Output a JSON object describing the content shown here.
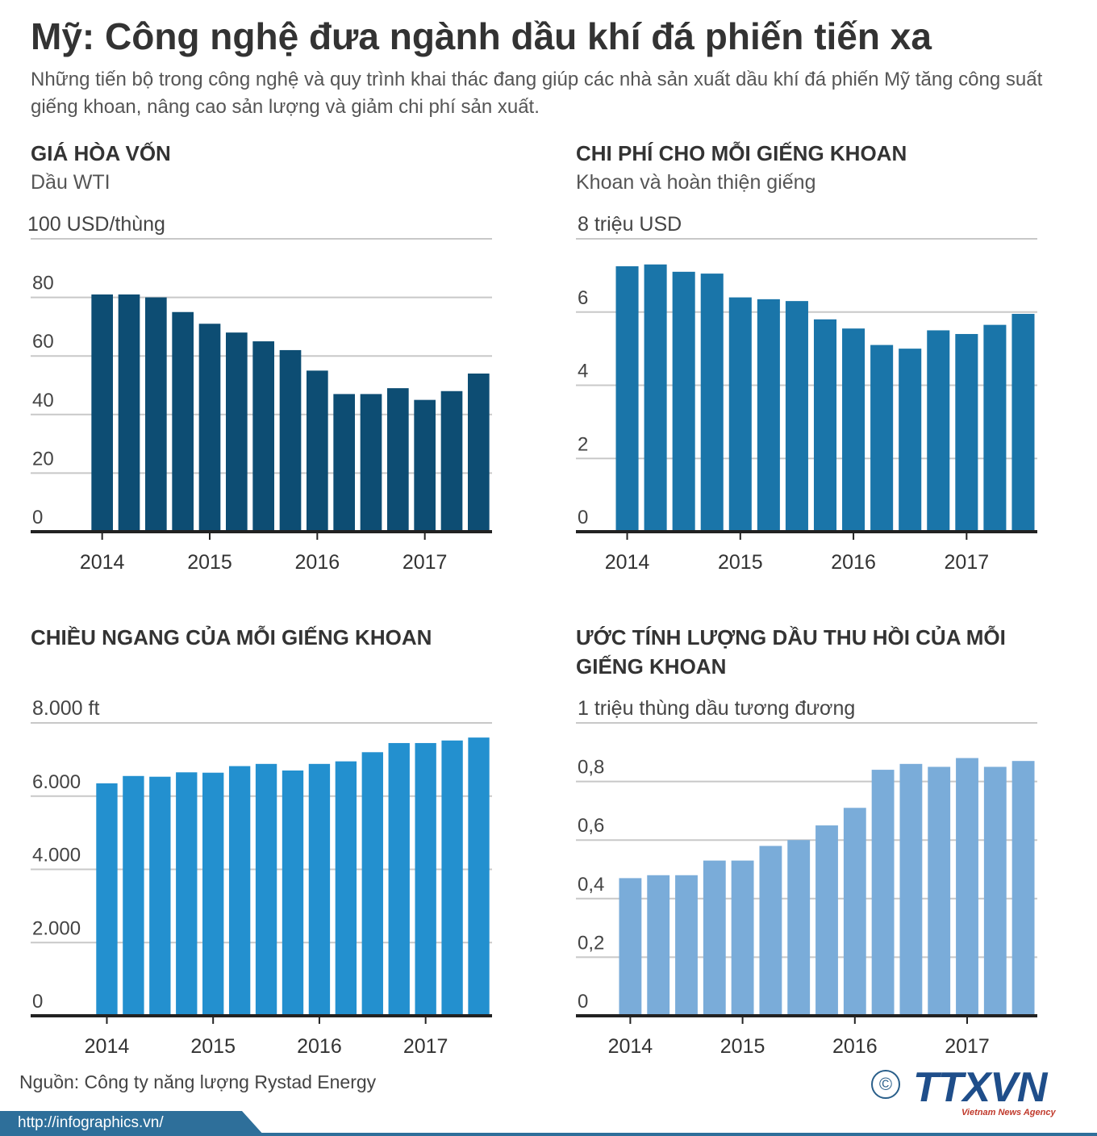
{
  "header": {
    "title": "Mỹ: Công nghệ đưa ngành dầu khí đá phiến tiến xa",
    "subtitle": "Những tiến bộ trong công nghệ và quy trình khai thác đang giúp các nhà sản xuất dầu khí đá phiến Mỹ tăng công suất giếng khoan, nâng cao sản lượng và giảm chi phí sản xuất."
  },
  "colors": {
    "breakeven": "#0d4d73",
    "cost": "#1a75a9",
    "length": "#2390cf",
    "recovery": "#7aacd9",
    "grid": "#c8c8c8",
    "axis": "#222222"
  },
  "chart_data": [
    {
      "type": "bar",
      "title": "GIÁ HÒA VỐN",
      "subtitle": "Dầu WTI",
      "ylabel": "100 USD/thùng",
      "ylim": [
        0,
        100
      ],
      "yticks": [
        0,
        20,
        40,
        60,
        80
      ],
      "ytick_labels": [
        "0",
        "20",
        "40",
        "60",
        "80"
      ],
      "x": [
        2014.0,
        2014.25,
        2014.5,
        2014.75,
        2015.0,
        2015.25,
        2015.5,
        2015.75,
        2016.0,
        2016.25,
        2016.5,
        2016.75,
        2017.0,
        2017.25,
        2017.5
      ],
      "xticks": [
        "2014",
        "2015",
        "2016",
        "2017"
      ],
      "values": [
        81,
        81,
        80,
        75,
        71,
        68,
        65,
        62,
        55,
        47,
        47,
        49,
        45,
        48,
        54
      ],
      "grid": true
    },
    {
      "type": "bar",
      "title": "CHI PHÍ CHO MỖI GIẾNG KHOAN",
      "subtitle": "Khoan và hoàn thiện giếng",
      "ylabel": "8 triệu USD",
      "ylim": [
        0,
        8
      ],
      "yticks": [
        0,
        2,
        4,
        6
      ],
      "ytick_labels": [
        "0",
        "2",
        "4",
        "6"
      ],
      "x": [
        2014.0,
        2014.25,
        2014.5,
        2014.75,
        2015.0,
        2015.25,
        2015.5,
        2015.75,
        2016.0,
        2016.25,
        2016.5,
        2016.75,
        2017.0,
        2017.25,
        2017.5
      ],
      "xticks": [
        "2014",
        "2015",
        "2016",
        "2017"
      ],
      "values": [
        7.25,
        7.3,
        7.1,
        7.05,
        6.4,
        6.35,
        6.3,
        5.8,
        5.55,
        5.1,
        5.0,
        5.5,
        5.4,
        5.65,
        5.95
      ],
      "grid": true
    },
    {
      "type": "bar",
      "title": "CHIỀU NGANG CỦA MỖI GIẾNG KHOAN",
      "subtitle": "",
      "ylabel": "8.000 ft",
      "ylim": [
        0,
        8000
      ],
      "yticks": [
        0,
        2000,
        4000,
        6000
      ],
      "ytick_labels": [
        "0",
        "2.000",
        "4.000",
        "6.000"
      ],
      "x": [
        2014.0,
        2014.25,
        2014.5,
        2014.75,
        2015.0,
        2015.25,
        2015.5,
        2015.75,
        2016.0,
        2016.25,
        2016.5,
        2016.75,
        2017.0,
        2017.25,
        2017.5
      ],
      "xticks": [
        "2014",
        "2015",
        "2016",
        "2017"
      ],
      "values": [
        6350,
        6550,
        6530,
        6650,
        6640,
        6820,
        6880,
        6700,
        6880,
        6950,
        7200,
        7450,
        7450,
        7520,
        7600
      ],
      "grid": true
    },
    {
      "type": "bar",
      "title": "ƯỚC TÍNH LƯỢNG DẦU THU HỒI CỦA MỖI GIẾNG KHOAN",
      "subtitle": "",
      "ylabel": "1 triệu thùng dầu tương đương",
      "ylim": [
        0,
        1
      ],
      "yticks": [
        0,
        0.2,
        0.4,
        0.6,
        0.8
      ],
      "ytick_labels": [
        "0",
        "0,2",
        "0,4",
        "0,6",
        "0,8"
      ],
      "x": [
        2014.0,
        2014.25,
        2014.5,
        2014.75,
        2015.0,
        2015.25,
        2015.5,
        2015.75,
        2016.0,
        2016.25,
        2016.5,
        2016.75,
        2017.0,
        2017.25,
        2017.5
      ],
      "xticks": [
        "2014",
        "2015",
        "2016",
        "2017"
      ],
      "values": [
        0.47,
        0.48,
        0.48,
        0.53,
        0.53,
        0.58,
        0.6,
        0.65,
        0.71,
        0.84,
        0.86,
        0.85,
        0.88,
        0.85,
        0.87
      ],
      "grid": true
    }
  ],
  "footer": {
    "source": "Nguồn:  Công ty năng lượng Rystad Energy",
    "url": "http://infographics.vn/",
    "copyright_symbol": "©",
    "logo": "TTXVN",
    "agency": "Vietnam News Agency"
  }
}
